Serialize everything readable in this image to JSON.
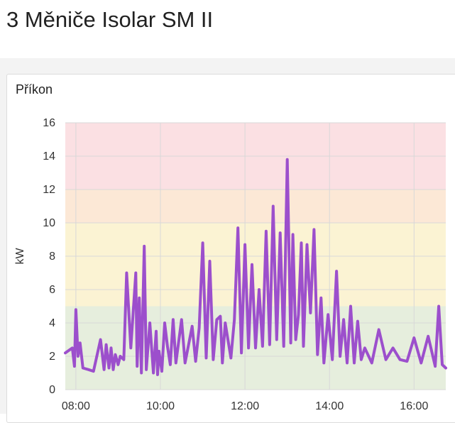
{
  "page": {
    "title": "3 Měniče Isolar SM II"
  },
  "panel": {
    "title": "Příkon"
  },
  "chart_data": {
    "type": "line",
    "title": "Příkon",
    "xlabel": "",
    "ylabel": "kW",
    "ylim": [
      0,
      16
    ],
    "xlim": [
      "07:45",
      "16:45"
    ],
    "grid": true,
    "x_ticks": [
      "08:00",
      "10:00",
      "12:00",
      "14:00",
      "16:00"
    ],
    "y_ticks": [
      "0",
      "2",
      "4",
      "6",
      "8",
      "10",
      "12",
      "14",
      "16"
    ],
    "bands": [
      {
        "from": 0,
        "to": 5,
        "color": "#e6eedd"
      },
      {
        "from": 5,
        "to": 10,
        "color": "#fbf3d3"
      },
      {
        "from": 10,
        "to": 12,
        "color": "#fce8d6"
      },
      {
        "from": 12,
        "to": 16,
        "color": "#fbe0e3"
      }
    ],
    "series": [
      {
        "color": "#9c4fcc",
        "x": [
          "07:45",
          "07:55",
          "07:58",
          "08:00",
          "08:03",
          "08:06",
          "08:10",
          "08:18",
          "08:25",
          "08:35",
          "08:40",
          "08:43",
          "08:47",
          "08:50",
          "08:53",
          "08:56",
          "09:00",
          "09:03",
          "09:08",
          "09:12",
          "09:18",
          "09:25",
          "09:27",
          "09:30",
          "09:33",
          "09:37",
          "09:40",
          "09:45",
          "09:50",
          "09:54",
          "09:56",
          "09:58",
          "10:02",
          "10:06",
          "10:10",
          "10:14",
          "10:18",
          "10:22",
          "10:30",
          "10:35",
          "10:45",
          "10:50",
          "10:55",
          "11:00",
          "11:05",
          "11:10",
          "11:15",
          "11:20",
          "11:25",
          "11:28",
          "11:32",
          "11:40",
          "11:45",
          "11:50",
          "11:55",
          "12:00",
          "12:05",
          "12:10",
          "12:15",
          "12:20",
          "12:25",
          "12:30",
          "12:35",
          "12:40",
          "12:45",
          "12:50",
          "12:55",
          "13:00",
          "13:05",
          "13:08",
          "13:12",
          "13:16",
          "13:20",
          "13:23",
          "13:28",
          "13:33",
          "13:38",
          "13:43",
          "13:48",
          "13:52",
          "13:58",
          "14:04",
          "14:10",
          "14:15",
          "14:20",
          "14:25",
          "14:30",
          "14:35",
          "14:40",
          "14:45",
          "14:50",
          "15:00",
          "15:10",
          "15:20",
          "15:30",
          "15:40",
          "15:50",
          "16:00",
          "16:10",
          "16:20",
          "16:30",
          "16:35",
          "16:40",
          "16:45"
        ],
        "y": [
          2.2,
          2.5,
          1.4,
          4.8,
          2.0,
          2.8,
          1.3,
          1.2,
          1.1,
          3.0,
          1.2,
          2.7,
          1.3,
          2.5,
          1.2,
          2.1,
          1.5,
          2.0,
          1.8,
          7.0,
          2.5,
          7.0,
          1.4,
          5.5,
          1.0,
          8.6,
          1.2,
          4.0,
          1.0,
          3.5,
          0.9,
          2.3,
          1.1,
          4.0,
          2.6,
          1.5,
          4.2,
          1.6,
          4.2,
          1.6,
          3.8,
          1.7,
          3.7,
          8.8,
          1.9,
          7.7,
          1.8,
          4.2,
          4.4,
          1.6,
          4.0,
          1.9,
          4.2,
          9.7,
          2.2,
          8.7,
          2.5,
          7.5,
          2.5,
          6.0,
          2.6,
          9.5,
          2.7,
          11.0,
          3.0,
          9.4,
          2.6,
          13.8,
          2.8,
          9.3,
          3.0,
          4.5,
          8.8,
          2.6,
          8.7,
          4.6,
          9.6,
          2.1,
          5.5,
          1.6,
          4.5,
          1.8,
          7.1,
          2.0,
          4.2,
          1.6,
          5.0,
          1.6,
          4.1,
          1.8,
          2.5,
          1.6,
          3.6,
          1.8,
          2.5,
          1.8,
          1.7,
          3.1,
          1.6,
          3.2,
          1.4,
          5.0,
          1.5,
          1.3
        ]
      }
    ]
  }
}
